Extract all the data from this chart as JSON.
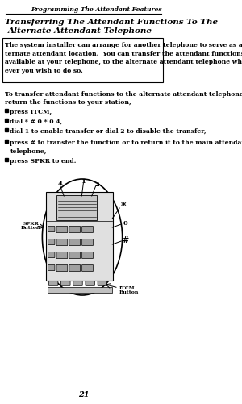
{
  "background_color": "#ffffff",
  "header_text": "Programming The Attendant Features",
  "title_line1": "Transferring The Attendant Functions To The",
  "title_line2": "Alternate Attendant Telephone",
  "intro_text": "The system installer can arrange for another telephone to serve as an al-\nternate attendant location.  You can transfer the attendant functions,\navailable at your telephone, to the alternate attendant telephone when-\never you wish to do so.",
  "body_text": "To transfer attendant functions to the alternate attendant telephone or to\nreturn the functions to your station,",
  "bullets": [
    "press ITCM,",
    "dial * # 0 * 0 4,",
    "dial 1 to enable transfer or dial 2 to disable the transfer,",
    "press # to transfer the function or to return it to the main attendant\ntelephone,",
    "press SPKR to end."
  ],
  "page_number": "21",
  "label_4": "4",
  "label_1": "1",
  "label_2": "2",
  "label_star": "*",
  "label_0": "0",
  "label_hash": "#",
  "label_spkr": "SPKR\nButton",
  "label_itcm": "ITCM\nButton"
}
